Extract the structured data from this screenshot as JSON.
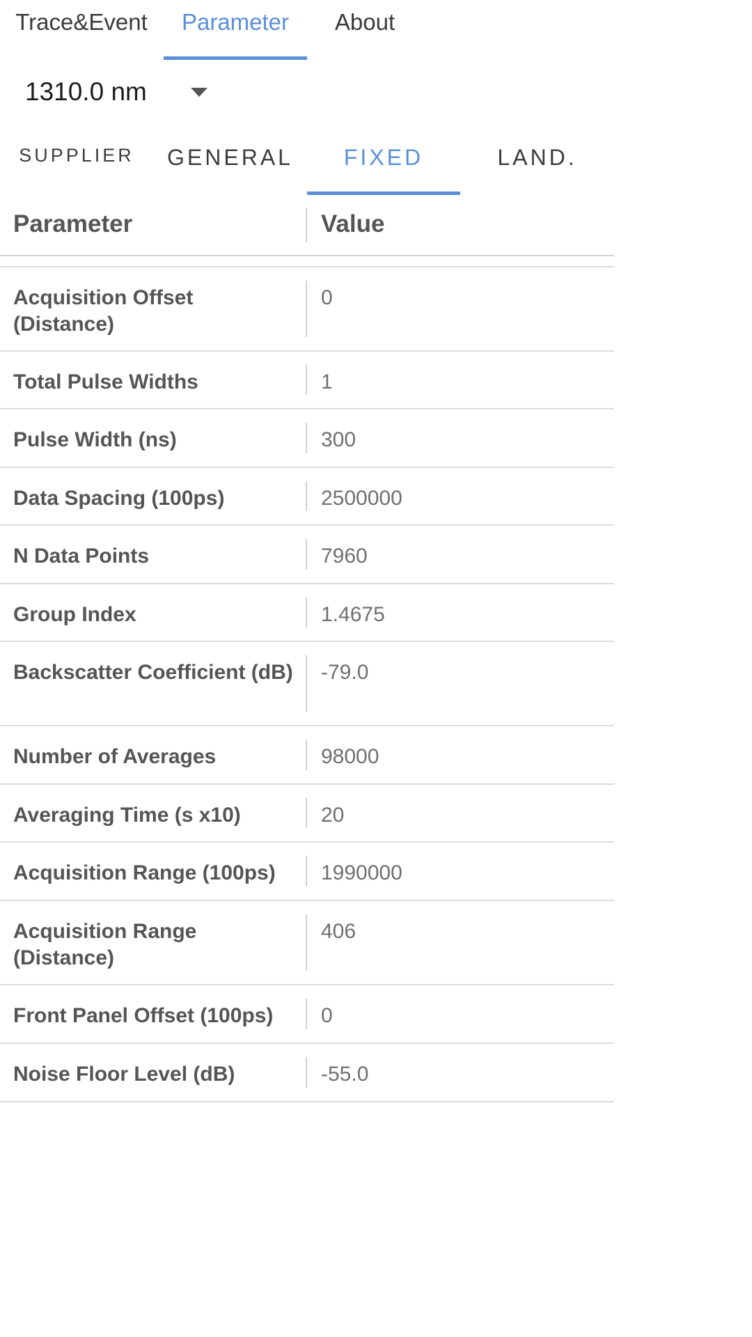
{
  "top_tabs": [
    {
      "label": "Trace&Event",
      "active": false
    },
    {
      "label": "Parameter",
      "active": true
    },
    {
      "label": "About",
      "active": false
    }
  ],
  "wavelength": {
    "value": "1310.0 nm"
  },
  "sub_tabs": [
    {
      "label": "SUPPLIER",
      "active": false
    },
    {
      "label": "GENERAL",
      "active": false
    },
    {
      "label": "FIXED",
      "active": true
    },
    {
      "label": "LAND.",
      "active": false
    }
  ],
  "table": {
    "headers": [
      "Parameter",
      "Value"
    ],
    "rows": [
      {
        "name": "Acquisition Offset (Distance)",
        "value": "0"
      },
      {
        "name": "Total Pulse Widths",
        "value": "1"
      },
      {
        "name": "Pulse Width (ns)",
        "value": "300"
      },
      {
        "name": "Data Spacing (100ps)",
        "value": "2500000"
      },
      {
        "name": "N Data Points",
        "value": "7960"
      },
      {
        "name": "Group Index",
        "value": "1.4675"
      },
      {
        "name": "Backscatter Coefficient (dB)",
        "value": "-79.0"
      },
      {
        "name": "Number of Averages",
        "value": "98000"
      },
      {
        "name": "Averaging Time (s x10)",
        "value": "20"
      },
      {
        "name": "Acquisition Range (100ps)",
        "value": "1990000"
      },
      {
        "name": "Acquisition Range (Distance)",
        "value": "406"
      },
      {
        "name": "Front Panel Offset (100ps)",
        "value": "0"
      },
      {
        "name": "Noise Floor Level (dB)",
        "value": "-55.0"
      }
    ]
  },
  "colors": {
    "accent": "#5b8fd9",
    "text": "#555555",
    "value_text": "#6f6f6f",
    "divider": "#dcdcdc"
  }
}
